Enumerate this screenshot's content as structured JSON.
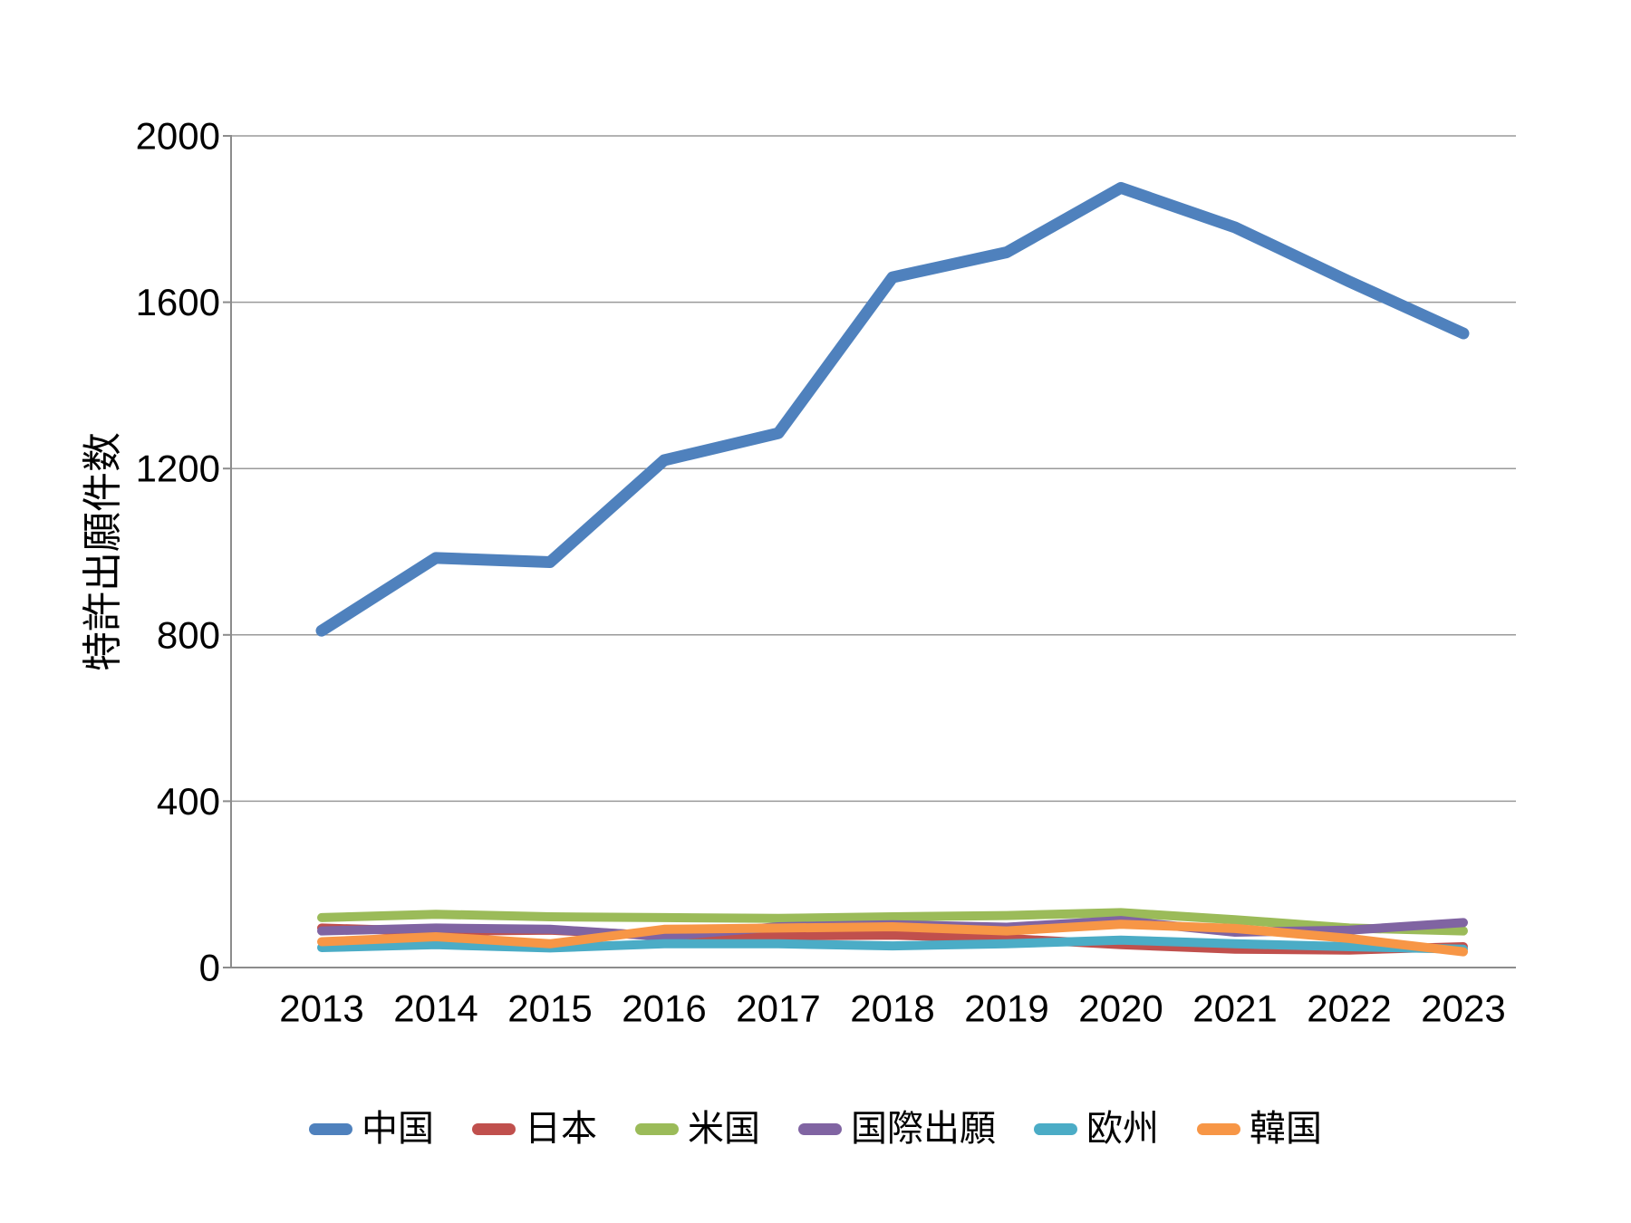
{
  "chart_data": {
    "type": "line",
    "title": "",
    "ylabel": "特許出願件数",
    "xlabel": "",
    "ylim": [
      0,
      2000
    ],
    "ytick_step": 400,
    "yticks": [
      "0",
      "400",
      "800",
      "1200",
      "1600",
      "2000"
    ],
    "ytick_values": [
      0,
      400,
      800,
      1200,
      1600,
      2000
    ],
    "grid": "horizontal-only",
    "legend_position": "bottom",
    "categories": [
      "2013",
      "2014",
      "2015",
      "2016",
      "2017",
      "2018",
      "2019",
      "2020",
      "2021",
      "2022",
      "2023"
    ],
    "series": [
      {
        "name": "中国",
        "color": "#4F81BD",
        "values": [
          810,
          985,
          975,
          1220,
          1285,
          1660,
          1720,
          1875,
          1780,
          1650,
          1525
        ]
      },
      {
        "name": "日本",
        "color": "#C0504D",
        "values": [
          95,
          87,
          90,
          76,
          76,
          78,
          70,
          55,
          44,
          42,
          50
        ]
      },
      {
        "name": "米国",
        "color": "#9BBB59",
        "values": [
          120,
          128,
          122,
          120,
          118,
          122,
          125,
          132,
          115,
          95,
          88
        ]
      },
      {
        "name": "国際出願",
        "color": "#8064A2",
        "values": [
          88,
          95,
          92,
          75,
          98,
          103,
          97,
          113,
          85,
          90,
          108
        ]
      },
      {
        "name": "欧州",
        "color": "#4BACC6",
        "values": [
          48,
          55,
          47,
          57,
          57,
          52,
          57,
          66,
          57,
          50,
          44
        ]
      },
      {
        "name": "韓国",
        "color": "#F79646",
        "values": [
          62,
          74,
          57,
          92,
          95,
          98,
          88,
          104,
          94,
          70,
          38
        ]
      }
    ],
    "colors": {
      "axis_line": "#8C8C8C",
      "gridline": "#9A9A9A",
      "text": "#000000",
      "background": "#FFFFFF"
    }
  }
}
